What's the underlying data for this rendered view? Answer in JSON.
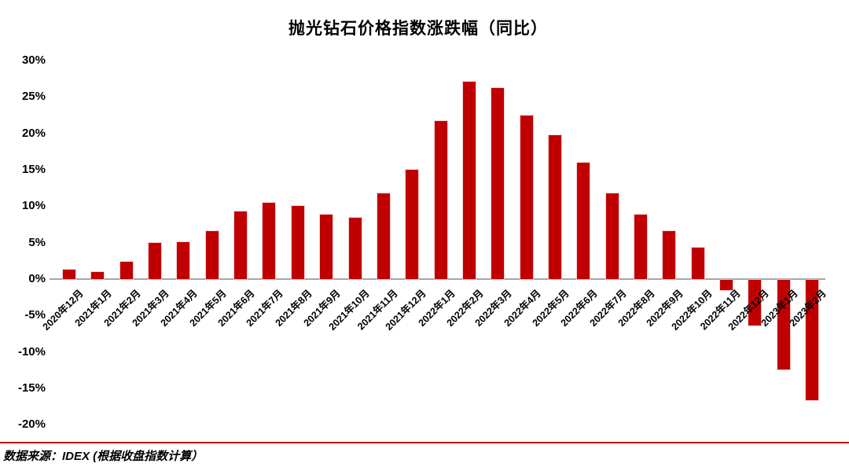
{
  "chart_data": {
    "type": "bar",
    "title": "抛光钻石价格指数涨跌幅（同比）",
    "categories": [
      "2020年12月",
      "2021年1月",
      "2021年2月",
      "2021年3月",
      "2021年4月",
      "2021年5月",
      "2021年6月",
      "2021年7月",
      "2021年8月",
      "2021年9月",
      "2021年10月",
      "2021年11月",
      "2021年12月",
      "2022年1月",
      "2022年2月",
      "2022年3月",
      "2022年4月",
      "2022年5月",
      "2022年6月",
      "2022年7月",
      "2022年8月",
      "2022年9月",
      "2022年10月",
      "2022年11月",
      "2022年12月",
      "2023年1月",
      "2023年2月"
    ],
    "values": [
      1.3,
      1.0,
      2.4,
      5.0,
      5.1,
      6.6,
      9.3,
      10.5,
      10.0,
      8.8,
      8.4,
      11.8,
      15.0,
      21.7,
      27.1,
      26.2,
      22.5,
      19.8,
      16.0,
      11.8,
      8.8,
      6.6,
      4.3,
      -1.4,
      -6.3,
      -12.3,
      -16.5
    ],
    "value_unit": "%",
    "xlabel": "",
    "ylabel": "",
    "ylim": [
      -20,
      30
    ],
    "ytick_step": 5,
    "ytick_labels": [
      "30%",
      "25%",
      "20%",
      "15%",
      "10%",
      "5%",
      "0%",
      "-5%",
      "-10%",
      "-15%",
      "-20%"
    ],
    "grid": false,
    "legend_position": "none",
    "bar_color": "#C00000",
    "axis_line_color": "#A6A6A6"
  },
  "footer": {
    "source_text": "数据来源：IDEX (根据收盘指数计算）",
    "rule_color": "#C00000"
  }
}
